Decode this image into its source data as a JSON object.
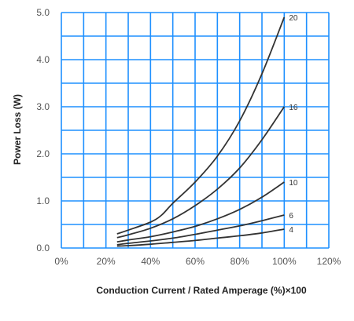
{
  "chart_data": {
    "type": "line",
    "xlabel": "Conduction Current / Rated Amperage (%)×100",
    "ylabel": "Power Loss (W)",
    "x_ticks": [
      "0%",
      "20%",
      "40%",
      "60%",
      "80%",
      "100%",
      "120%"
    ],
    "y_ticks": [
      "0.0",
      "1.0",
      "2.0",
      "3.0",
      "4.0",
      "5.0"
    ],
    "xlim": [
      0,
      120
    ],
    "ylim": [
      0,
      5
    ],
    "grid": true,
    "grid_color": "#1e90ff",
    "line_color": "#333333",
    "series": [
      {
        "name": "20",
        "x": [
          25,
          30,
          40,
          45,
          50,
          60,
          70,
          80,
          90,
          100
        ],
        "y": [
          0.3,
          0.38,
          0.55,
          0.7,
          0.95,
          1.4,
          1.95,
          2.7,
          3.7,
          4.9
        ]
      },
      {
        "name": "16",
        "x": [
          25,
          30,
          40,
          50,
          60,
          70,
          80,
          90,
          100
        ],
        "y": [
          0.22,
          0.28,
          0.42,
          0.62,
          0.9,
          1.25,
          1.7,
          2.3,
          3.0
        ]
      },
      {
        "name": "10",
        "x": [
          25,
          30,
          40,
          50,
          60,
          70,
          80,
          90,
          100
        ],
        "y": [
          0.13,
          0.17,
          0.24,
          0.34,
          0.46,
          0.62,
          0.82,
          1.08,
          1.4
        ]
      },
      {
        "name": "6",
        "x": [
          25,
          30,
          40,
          50,
          60,
          70,
          80,
          90,
          100
        ],
        "y": [
          0.07,
          0.1,
          0.15,
          0.21,
          0.29,
          0.38,
          0.47,
          0.58,
          0.7
        ]
      },
      {
        "name": "4",
        "x": [
          25,
          30,
          40,
          50,
          60,
          70,
          80,
          90,
          100
        ],
        "y": [
          0.04,
          0.05,
          0.08,
          0.12,
          0.16,
          0.21,
          0.26,
          0.32,
          0.4
        ]
      }
    ]
  }
}
